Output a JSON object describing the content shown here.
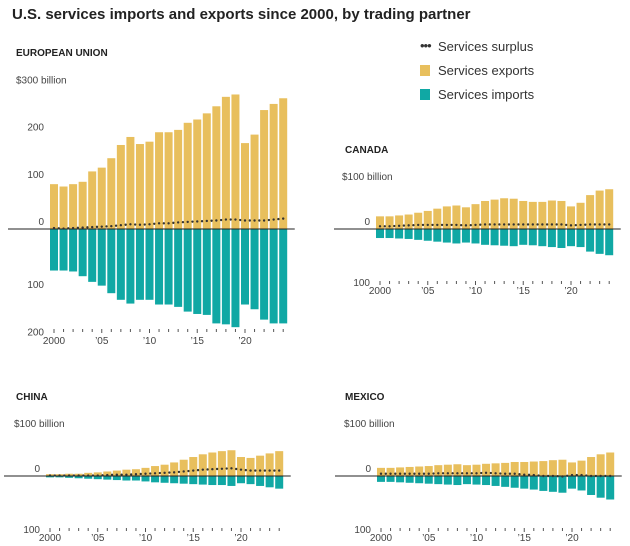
{
  "title": "U.S. services imports and exports since 2000, by trading partner",
  "legend": {
    "surplus": "Services surplus",
    "exports": "Services exports",
    "imports": "Services imports"
  },
  "colors": {
    "exports": "#e8bf5d",
    "imports": "#10a8a4",
    "surplus": "#333333",
    "axis": "#222222"
  },
  "chart_data": [
    {
      "type": "bar",
      "title": "EUROPEAN UNION",
      "ylabel": "$300 billion",
      "y_ticks": [
        {
          "value": 300,
          "label": "$300 billion"
        },
        {
          "value": 200,
          "label": "200"
        },
        {
          "value": 100,
          "label": "100"
        },
        {
          "value": 0,
          "label": "0"
        },
        {
          "value": -100,
          "label": "100"
        },
        {
          "value": -200,
          "label": "200"
        }
      ],
      "x_labels": [
        {
          "year": 2000,
          "label": "2000"
        },
        {
          "year": 2005,
          "label": "’05"
        },
        {
          "year": 2010,
          "label": "’10"
        },
        {
          "year": 2015,
          "label": "’15"
        },
        {
          "year": 2020,
          "label": "’20"
        }
      ],
      "years": [
        2000,
        2001,
        2002,
        2003,
        2004,
        2005,
        2006,
        2007,
        2008,
        2009,
        2010,
        2011,
        2012,
        2013,
        2014,
        2015,
        2016,
        2017,
        2018,
        2019,
        2020,
        2021,
        2022,
        2023,
        2024
      ],
      "series": [
        {
          "name": "Services exports",
          "values": [
            95,
            90,
            95,
            100,
            122,
            130,
            150,
            178,
            195,
            180,
            185,
            205,
            205,
            210,
            225,
            232,
            245,
            260,
            280,
            285,
            182,
            200,
            252,
            265,
            277
          ]
        },
        {
          "name": "Services imports",
          "values": [
            -88,
            -88,
            -90,
            -100,
            -112,
            -120,
            -136,
            -150,
            -158,
            -150,
            -150,
            -160,
            -160,
            -165,
            -175,
            -180,
            -182,
            -200,
            -202,
            -208,
            -160,
            -170,
            -192,
            -200,
            -200
          ]
        },
        {
          "name": "Services surplus",
          "values": [
            2,
            1,
            2,
            3,
            4,
            5,
            6,
            8,
            10,
            9,
            10,
            12,
            12,
            14,
            15,
            16,
            17,
            18,
            20,
            20,
            18,
            18,
            18,
            20,
            22
          ]
        }
      ]
    },
    {
      "type": "bar",
      "title": "CANADA",
      "ylabel": "$100 billion",
      "y_ticks": [
        {
          "value": 100,
          "label": "$100 billion"
        },
        {
          "value": 0,
          "label": "0"
        },
        {
          "value": -100,
          "label": "100"
        }
      ],
      "x_labels": [
        {
          "year": 2000,
          "label": "2000"
        },
        {
          "year": 2005,
          "label": "’05"
        },
        {
          "year": 2010,
          "label": "’10"
        },
        {
          "year": 2015,
          "label": "’15"
        },
        {
          "year": 2020,
          "label": "’20"
        }
      ],
      "years": [
        2000,
        2001,
        2002,
        2003,
        2004,
        2005,
        2006,
        2007,
        2008,
        2009,
        2010,
        2011,
        2012,
        2013,
        2014,
        2015,
        2016,
        2017,
        2018,
        2019,
        2020,
        2021,
        2022,
        2023,
        2024
      ],
      "series": [
        {
          "name": "Services exports",
          "values": [
            28,
            28,
            30,
            32,
            36,
            40,
            45,
            50,
            52,
            48,
            55,
            62,
            65,
            68,
            67,
            62,
            60,
            60,
            63,
            62,
            50,
            58,
            75,
            85,
            88
          ]
        },
        {
          "name": "Services imports",
          "values": [
            -20,
            -20,
            -21,
            -22,
            -24,
            -26,
            -28,
            -30,
            -32,
            -30,
            -32,
            -35,
            -36,
            -37,
            -38,
            -35,
            -36,
            -38,
            -40,
            -42,
            -38,
            -40,
            -50,
            -55,
            -58
          ]
        },
        {
          "name": "Services surplus",
          "values": [
            6,
            6,
            7,
            8,
            9,
            9,
            9,
            9,
            9,
            8,
            9,
            10,
            10,
            10,
            10,
            10,
            10,
            10,
            10,
            10,
            8,
            9,
            10,
            10,
            10
          ]
        }
      ]
    },
    {
      "type": "bar",
      "title": "CHINA",
      "ylabel": "$100 billion",
      "y_ticks": [
        {
          "value": 100,
          "label": "$100 billion"
        },
        {
          "value": 0,
          "label": "0"
        },
        {
          "value": -100,
          "label": "100"
        }
      ],
      "x_labels": [
        {
          "year": 2000,
          "label": "2000"
        },
        {
          "year": 2005,
          "label": "’05"
        },
        {
          "year": 2010,
          "label": "’10"
        },
        {
          "year": 2015,
          "label": "’15"
        },
        {
          "year": 2020,
          "label": "’20"
        }
      ],
      "years": [
        2000,
        2001,
        2002,
        2003,
        2004,
        2005,
        2006,
        2007,
        2008,
        2009,
        2010,
        2011,
        2012,
        2013,
        2014,
        2015,
        2016,
        2017,
        2018,
        2019,
        2020,
        2021,
        2022,
        2023,
        2024
      ],
      "series": [
        {
          "name": "Services exports",
          "values": [
            4,
            4,
            5,
            5,
            7,
            8,
            10,
            12,
            14,
            15,
            18,
            22,
            25,
            30,
            36,
            42,
            48,
            52,
            55,
            57,
            42,
            40,
            45,
            50,
            55
          ]
        },
        {
          "name": "Services imports",
          "values": [
            -3,
            -3,
            -4,
            -5,
            -6,
            -7,
            -8,
            -9,
            -10,
            -10,
            -12,
            -14,
            -15,
            -16,
            -17,
            -18,
            -19,
            -20,
            -20,
            -22,
            -16,
            -18,
            -22,
            -25,
            -28
          ]
        },
        {
          "name": "Services surplus",
          "values": [
            1,
            1,
            1,
            1,
            1,
            1,
            2,
            3,
            3,
            4,
            5,
            6,
            7,
            8,
            10,
            12,
            14,
            15,
            16,
            17,
            14,
            12,
            12,
            12,
            12
          ]
        }
      ]
    },
    {
      "type": "bar",
      "title": "MEXICO",
      "ylabel": "$100 billion",
      "y_ticks": [
        {
          "value": 100,
          "label": "$100 billion"
        },
        {
          "value": 0,
          "label": "0"
        },
        {
          "value": -100,
          "label": "100"
        }
      ],
      "x_labels": [
        {
          "year": 2000,
          "label": "2000"
        },
        {
          "year": 2005,
          "label": "’05"
        },
        {
          "year": 2010,
          "label": "’10"
        },
        {
          "year": 2015,
          "label": "’15"
        },
        {
          "year": 2020,
          "label": "’20"
        }
      ],
      "years": [
        2000,
        2001,
        2002,
        2003,
        2004,
        2005,
        2006,
        2007,
        2008,
        2009,
        2010,
        2011,
        2012,
        2013,
        2014,
        2015,
        2016,
        2017,
        2018,
        2019,
        2020,
        2021,
        2022,
        2023,
        2024
      ],
      "series": [
        {
          "name": "Services exports",
          "values": [
            18,
            18,
            19,
            20,
            21,
            22,
            24,
            25,
            26,
            24,
            25,
            27,
            28,
            29,
            31,
            31,
            32,
            33,
            35,
            36,
            30,
            34,
            42,
            48,
            52
          ]
        },
        {
          "name": "Services imports",
          "values": [
            -13,
            -13,
            -14,
            -15,
            -16,
            -17,
            -18,
            -19,
            -20,
            -18,
            -19,
            -20,
            -22,
            -24,
            -26,
            -28,
            -30,
            -33,
            -35,
            -37,
            -28,
            -32,
            -42,
            -48,
            -52
          ]
        },
        {
          "name": "Services surplus",
          "values": [
            5,
            5,
            5,
            5,
            5,
            5,
            6,
            6,
            6,
            6,
            6,
            7,
            6,
            5,
            5,
            3,
            2,
            0,
            0,
            -1,
            2,
            2,
            0,
            0,
            0
          ]
        }
      ]
    }
  ]
}
